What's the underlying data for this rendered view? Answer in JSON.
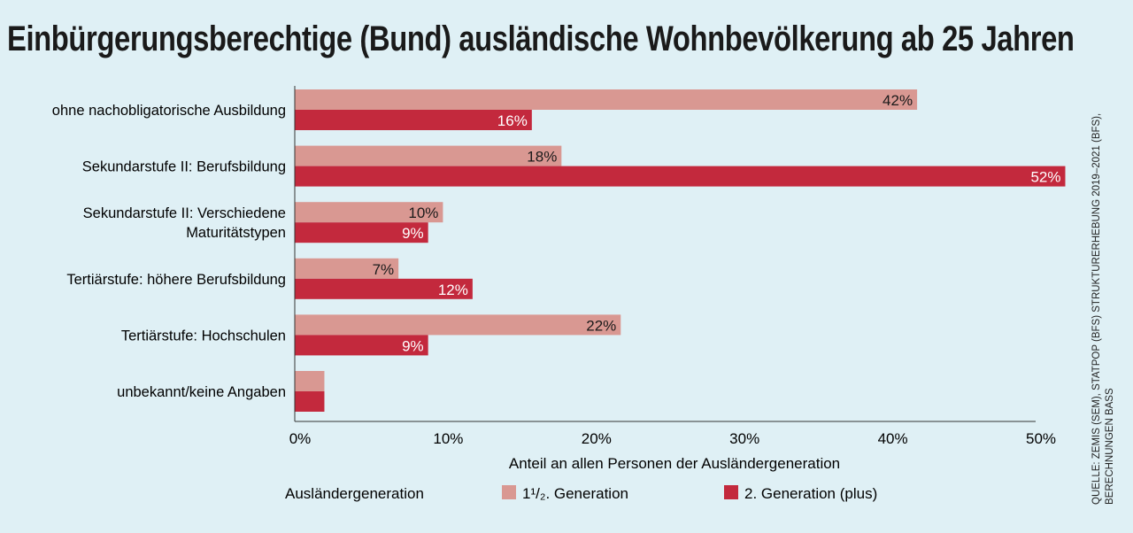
{
  "chart_data": {
    "type": "bar",
    "orientation": "horizontal",
    "title": "Einbürgerungsberechtige (Bund) ausländische Wohnbevölkerung ab 25 Jahren",
    "categories": [
      [
        "ohne nachobligatorische Ausbildung"
      ],
      [
        "Sekundarstufe II: Berufsbildung"
      ],
      [
        "Sekundarstufe II: Verschiedene",
        "Maturitätstypen"
      ],
      [
        "Tertiärstufe: höhere Berufsbildung"
      ],
      [
        "Tertiärstufe: Hochschulen"
      ],
      [
        "unbekannt/keine Angaben"
      ]
    ],
    "series": [
      {
        "name": "1¹/₂. Generation",
        "color": "#d99892",
        "label_color": "#1a1a1a",
        "values": [
          42,
          18,
          10,
          7,
          22,
          2
        ],
        "labels": [
          "42%",
          "18%",
          "10%",
          "7%",
          "22%",
          ""
        ]
      },
      {
        "name": "2. Generation (plus)",
        "color": "#c3293d",
        "label_color": "#ffffff",
        "values": [
          16,
          52,
          9,
          12,
          9,
          2
        ],
        "labels": [
          "16%",
          "52%",
          "9%",
          "12%",
          "9%",
          ""
        ]
      }
    ],
    "xlim": [
      0,
      50
    ],
    "xticks": [
      "0%",
      "10%",
      "20%",
      "30%",
      "40%",
      "50%"
    ],
    "xlabel": "Anteil an allen Personen der Ausländergeneration",
    "legend_title": "Ausländergeneration",
    "legend_position": "bottom",
    "grid": false
  },
  "source": [
    "QUELLE: ZEMIS (SEM), STATPOP (BFS) STRUKTURERHEBUNG 2019–2021 (BFS),",
    "BERECHNUNGEN BASS"
  ]
}
